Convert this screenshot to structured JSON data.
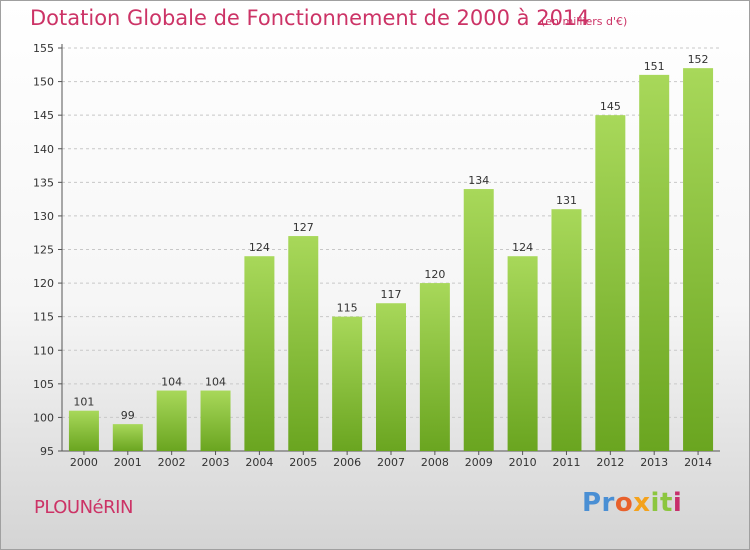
{
  "title": "Dotation Globale de Fonctionnement de 2000 à 2014",
  "subtitle": "(en milliers d'€)",
  "commune": "PLOUNéRIN",
  "logo": {
    "parts": [
      "Pr",
      "o",
      "x",
      "it",
      "i"
    ]
  },
  "colors": {
    "accent": "#cc3366",
    "bar_light": "#a8d85a",
    "bar_dark": "#6aa520",
    "grid": "#c8c8c8"
  },
  "chart_data": {
    "type": "bar",
    "categories": [
      "2000",
      "2001",
      "2002",
      "2003",
      "2004",
      "2005",
      "2006",
      "2007",
      "2008",
      "2009",
      "2010",
      "2011",
      "2012",
      "2013",
      "2014"
    ],
    "values": [
      101,
      99,
      104,
      104,
      124,
      127,
      115,
      117,
      120,
      134,
      124,
      131,
      145,
      151,
      152
    ],
    "ylim": [
      95,
      155
    ],
    "yticks": [
      95,
      100,
      105,
      110,
      115,
      120,
      125,
      130,
      135,
      140,
      145,
      150,
      155
    ],
    "grid": true
  }
}
